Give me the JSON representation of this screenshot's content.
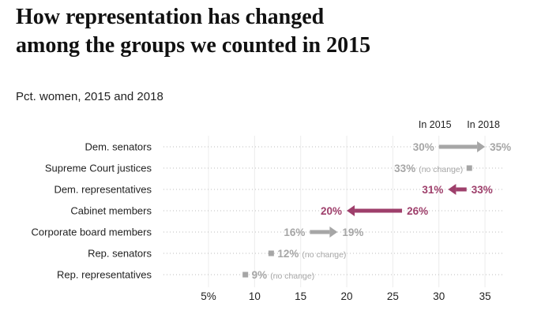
{
  "header": {
    "title_line1": "How representation has changed",
    "title_line2": "among the groups we counted in 2015",
    "subtitle": "Pct. women, 2015 and 2018"
  },
  "colors": {
    "up": "#a6a6a6",
    "down": "#9e3f6b",
    "none": "#a6a6a6",
    "axis_text": "#222222"
  },
  "chart_data": {
    "type": "arrow",
    "columns": [
      "In 2015",
      "In 2018"
    ],
    "x_ticks": [
      {
        "value": 5,
        "label": "5%"
      },
      {
        "value": 10,
        "label": "10"
      },
      {
        "value": 15,
        "label": "15"
      },
      {
        "value": 20,
        "label": "20"
      },
      {
        "value": 25,
        "label": "25"
      },
      {
        "value": 30,
        "label": "30"
      },
      {
        "value": 35,
        "label": "35"
      }
    ],
    "xlim": [
      2,
      38
    ],
    "rows": [
      {
        "label": "Dem. senators",
        "y2015": 30,
        "y2018": 35,
        "label2015": "30%",
        "label2018": "35%",
        "note": ""
      },
      {
        "label": "Supreme Court justices",
        "y2015": 33.3,
        "y2018": 33.3,
        "label2015": "33%",
        "label2018": "",
        "note": "(no change)"
      },
      {
        "label": "Dem. representatives",
        "y2015": 33,
        "y2018": 31,
        "label2015": "33%",
        "label2018": "31%",
        "note": ""
      },
      {
        "label": "Cabinet members",
        "y2015": 26,
        "y2018": 20,
        "label2015": "26%",
        "label2018": "20%",
        "note": ""
      },
      {
        "label": "Corporate board members",
        "y2015": 16,
        "y2018": 19,
        "label2015": "16%",
        "label2018": "19%",
        "note": ""
      },
      {
        "label": "Rep. senators",
        "y2015": 11.8,
        "y2018": 11.8,
        "label2015": "12%",
        "label2018": "",
        "note": "(no change)"
      },
      {
        "label": "Rep. representatives",
        "y2015": 9,
        "y2018": 9,
        "label2015": "9%",
        "label2018": "",
        "note": "(no change)"
      }
    ]
  }
}
